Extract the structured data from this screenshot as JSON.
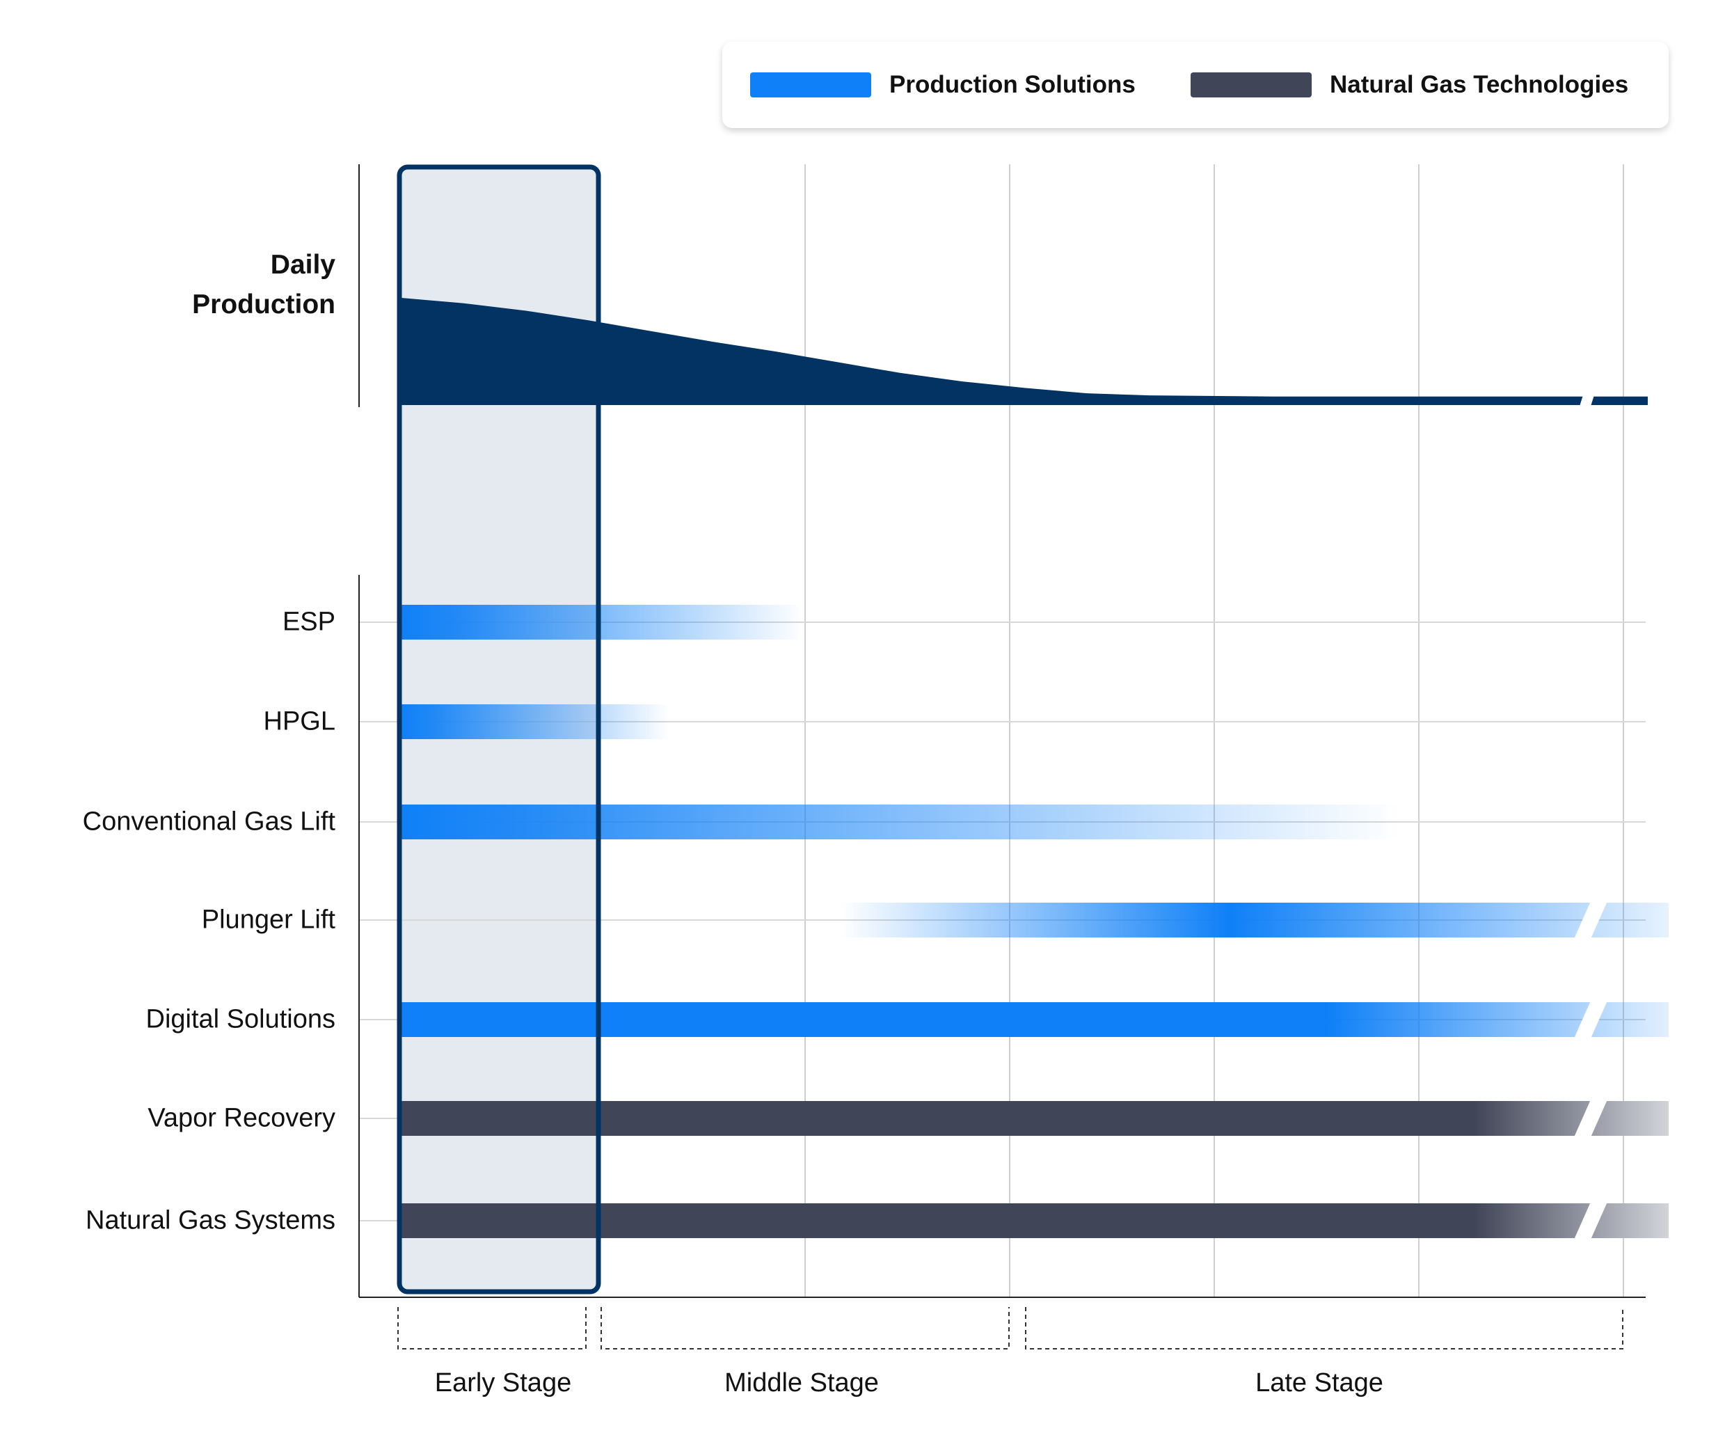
{
  "legend": {
    "items": [
      {
        "label": "Production Solutions",
        "color": "#0f80f7"
      },
      {
        "label": "Natural Gas Technologies",
        "color": "#404557"
      }
    ]
  },
  "chart_data": {
    "type": "gantt-area",
    "title": "",
    "production": {
      "ylabel": "Daily\nProduction",
      "color": "#023363",
      "description_units": "relative daily production (0-1) vs relative well life (0-1)",
      "x": [
        0,
        0.05,
        0.1,
        0.15,
        0.2,
        0.25,
        0.3,
        0.35,
        0.4,
        0.45,
        0.5,
        0.55,
        0.6,
        0.7,
        0.8,
        0.9,
        0.97,
        1.0
      ],
      "y": [
        1.0,
        0.95,
        0.88,
        0.79,
        0.69,
        0.59,
        0.5,
        0.4,
        0.3,
        0.22,
        0.16,
        0.11,
        0.09,
        0.08,
        0.08,
        0.08,
        0.08,
        0.08
      ],
      "axis_break": true
    },
    "categories": [
      "ESP",
      "HPGL",
      "Conventional Gas Lift",
      "Plunger Lift",
      "Digital Solutions",
      "Vapor Recovery",
      "Natural Gas Systems"
    ],
    "series": [
      {
        "name": "ESP",
        "group": "Production Solutions",
        "start": 0.0,
        "end": 0.33,
        "peak": 0.0,
        "fade_from": 0.05
      },
      {
        "name": "HPGL",
        "group": "Production Solutions",
        "start": 0.0,
        "end": 0.22,
        "peak": 0.0,
        "fade_from": 0.03
      },
      {
        "name": "Conventional Gas Lift",
        "group": "Production Solutions",
        "start": 0.0,
        "end": 0.82,
        "peak": 0.0,
        "fade_from": 0.1
      },
      {
        "name": "Plunger Lift",
        "group": "Production Solutions",
        "start": 0.36,
        "end": 1.04,
        "peak": 0.68,
        "fade_from": 0.5
      },
      {
        "name": "Digital Solutions",
        "group": "Production Solutions",
        "start": 0.0,
        "end": 1.04,
        "peak": 0.0,
        "fade_from": 0.76
      },
      {
        "name": "Vapor Recovery",
        "group": "Natural Gas Technologies",
        "start": 0.0,
        "end": 1.04,
        "peak": 0.0,
        "fade_from": 0.88
      },
      {
        "name": "Natural Gas Systems",
        "group": "Natural Gas Technologies",
        "start": 0.0,
        "end": 1.04,
        "peak": 0.0,
        "fade_from": 0.88
      }
    ],
    "stages": [
      {
        "label": "Early Stage",
        "start": 0.0,
        "end": 0.15
      },
      {
        "label": "Middle Stage",
        "start": 0.16,
        "end": 0.47
      },
      {
        "label": "Late Stage",
        "start": 0.48,
        "end": 0.96
      }
    ],
    "highlight": {
      "label": "Early Stage",
      "start": 0.0,
      "end": 0.15
    },
    "x_gridlines": 6,
    "grid": true
  }
}
